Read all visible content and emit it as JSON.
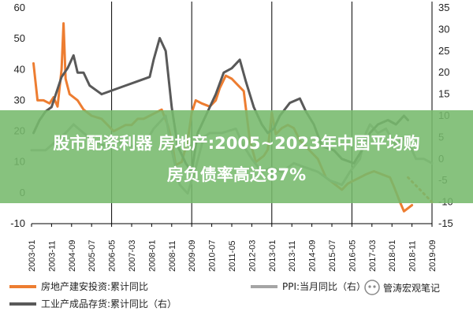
{
  "colors": {
    "real_estate_investment": "#ED7D31",
    "ppi": "#A5A5A5",
    "industrial_inventory": "#595959",
    "banner": "#76BA6C"
  },
  "banner": {
    "line1": "股市配资利器 房地产:2005~2023年中国平均购",
    "line2": "房负债率高达87%"
  },
  "watermark": {
    "icon": "wechat-icon",
    "text": "管涛宏观笔记"
  },
  "chart_data": {
    "type": "line",
    "title": "",
    "left_axis": {
      "min": -10,
      "max": 60,
      "ticks": [
        "60",
        "50",
        "40",
        "30",
        "20",
        "10",
        "0",
        "-10"
      ]
    },
    "right_axis": {
      "min": -15,
      "max": 35,
      "ticks": [
        "35",
        "30",
        "25",
        "20",
        "15",
        "10",
        "5",
        "0",
        "-5",
        "-10",
        "-15"
      ]
    },
    "x_ticks": [
      "2003-01",
      "2003-11",
      "2004-09",
      "2005-07",
      "2006-05",
      "2007-03",
      "2008-01",
      "2008-11",
      "2009-09",
      "2010-07",
      "2011-05",
      "2012-03",
      "2013-01",
      "2013-11",
      "2014-09",
      "2015-07",
      "2016-05",
      "2017-03",
      "2018-01",
      "2018-11",
      "2019-09"
    ],
    "vertical_lines": [
      "2006-05",
      "2009-09",
      "2013-01",
      "2016-05",
      "2019-09"
    ],
    "grid": false,
    "legend_position": "bottom",
    "legend": [
      "房地产建安投资:累计同比",
      "PPI:当月同比（右）",
      "工业产成品存货:累计同比（右）"
    ],
    "series": [
      {
        "name": "房地产建安投资:累计同比",
        "axis": "left",
        "style": "solid",
        "points": [
          [
            "2003-02",
            42
          ],
          [
            "2003-04",
            30
          ],
          [
            "2003-07",
            30
          ],
          [
            "2003-10",
            29
          ],
          [
            "2003-12",
            31
          ],
          [
            "2004-02",
            28
          ],
          [
            "2004-04",
            40
          ],
          [
            "2004-05",
            55
          ],
          [
            "2004-06",
            37
          ],
          [
            "2004-08",
            32
          ],
          [
            "2004-12",
            30
          ],
          [
            "2005-03",
            27
          ],
          [
            "2005-07",
            25
          ],
          [
            "2005-12",
            24
          ],
          [
            "2006-03",
            22
          ],
          [
            "2006-06",
            20
          ],
          [
            "2006-09",
            21
          ],
          [
            "2006-12",
            22
          ],
          [
            "2007-03",
            22
          ],
          [
            "2007-06",
            24
          ],
          [
            "2007-09",
            24
          ],
          [
            "2007-12",
            25
          ],
          [
            "2008-03",
            26
          ],
          [
            "2008-06",
            27
          ],
          [
            "2008-09",
            22
          ],
          [
            "2008-11",
            17
          ],
          [
            "2009-01",
            9
          ],
          [
            "2009-04",
            10
          ],
          [
            "2009-07",
            17
          ],
          [
            "2009-09",
            26
          ],
          [
            "2009-11",
            30
          ],
          [
            "2010-02",
            29
          ],
          [
            "2010-06",
            28
          ],
          [
            "2010-09",
            30
          ],
          [
            "2010-11",
            34
          ],
          [
            "2011-02",
            38
          ],
          [
            "2011-05",
            37
          ],
          [
            "2011-08",
            35
          ],
          [
            "2011-11",
            33
          ],
          [
            "2012-02",
            17
          ],
          [
            "2012-05",
            10
          ],
          [
            "2012-09",
            12
          ],
          [
            "2012-11",
            14
          ],
          [
            "2013-01",
            26
          ],
          [
            "2013-03",
            19
          ],
          [
            "2013-06",
            21
          ],
          [
            "2013-09",
            22
          ],
          [
            "2013-12",
            21
          ],
          [
            "2014-03",
            17
          ],
          [
            "2014-09",
            13
          ],
          [
            "2014-12",
            11
          ],
          [
            "2015-04",
            5
          ],
          [
            "2015-08",
            3
          ],
          [
            "2015-12",
            1
          ],
          [
            "2016-03",
            3
          ],
          [
            "2016-06",
            4
          ],
          [
            "2016-09",
            5
          ],
          [
            "2016-12",
            6
          ],
          [
            "2017-04",
            7
          ],
          [
            "2017-08",
            6
          ],
          [
            "2017-12",
            5
          ],
          [
            "2018-02",
            2
          ],
          [
            "2018-05",
            -3
          ],
          [
            "2018-07",
            -6
          ],
          [
            "2018-09",
            -5
          ],
          [
            "2018-11",
            -4
          ]
        ]
      },
      {
        "name": "PPI:当月同比（右）",
        "axis": "right",
        "style": "solid",
        "points": [
          [
            "2003-01",
            2
          ],
          [
            "2003-08",
            2
          ],
          [
            "2004-01",
            4
          ],
          [
            "2004-06",
            6
          ],
          [
            "2004-10",
            8
          ],
          [
            "2005-03",
            6
          ],
          [
            "2005-09",
            4
          ],
          [
            "2006-02",
            3
          ],
          [
            "2006-08",
            4
          ],
          [
            "2007-03",
            3
          ],
          [
            "2007-09",
            3
          ],
          [
            "2008-02",
            7
          ],
          [
            "2008-08",
            10
          ],
          [
            "2008-11",
            2
          ],
          [
            "2009-03",
            -6
          ],
          [
            "2009-07",
            -8
          ],
          [
            "2009-11",
            -2
          ],
          [
            "2010-03",
            5
          ],
          [
            "2010-06",
            6
          ],
          [
            "2010-12",
            6
          ],
          [
            "2011-07",
            7
          ],
          [
            "2011-11",
            3
          ],
          [
            "2012-03",
            0
          ],
          [
            "2012-08",
            -3
          ],
          [
            "2013-01",
            -2
          ],
          [
            "2013-06",
            -3
          ],
          [
            "2013-12",
            -1
          ],
          [
            "2014-06",
            -2
          ],
          [
            "2014-12",
            -3
          ],
          [
            "2015-06",
            -5
          ],
          [
            "2015-12",
            -6
          ],
          [
            "2016-04",
            -3
          ],
          [
            "2016-09",
            0
          ],
          [
            "2016-12",
            6
          ],
          [
            "2017-02",
            8
          ],
          [
            "2017-06",
            6
          ],
          [
            "2017-10",
            7
          ],
          [
            "2018-03",
            3
          ],
          [
            "2018-06",
            5
          ],
          [
            "2018-10",
            3
          ],
          [
            "2019-01",
            0
          ],
          [
            "2019-05",
            0
          ],
          [
            "2019-09",
            -1
          ]
        ]
      },
      {
        "name": "工业产成品存货:累计同比（右）",
        "axis": "right",
        "style": "solid",
        "points": [
          [
            "2003-02",
            6
          ],
          [
            "2003-05",
            9
          ],
          [
            "2003-08",
            11
          ],
          [
            "2003-11",
            12
          ],
          [
            "2004-04",
            19
          ],
          [
            "2004-07",
            21
          ],
          [
            "2004-10",
            24
          ],
          [
            "2004-12",
            20
          ],
          [
            "2005-03",
            20
          ],
          [
            "2005-06",
            17
          ],
          [
            "2005-12",
            15
          ],
          [
            "2006-06",
            16
          ],
          [
            "2006-12",
            17
          ],
          [
            "2007-06",
            18
          ],
          [
            "2007-12",
            19
          ],
          [
            "2008-02",
            23
          ],
          [
            "2008-05",
            28
          ],
          [
            "2008-08",
            25
          ],
          [
            "2008-11",
            12
          ],
          [
            "2009-02",
            3
          ],
          [
            "2009-06",
            -1
          ],
          [
            "2009-09",
            -3
          ],
          [
            "2009-12",
            6
          ],
          [
            "2010-04",
            10
          ],
          [
            "2010-09",
            15
          ],
          [
            "2011-01",
            20
          ],
          [
            "2011-05",
            21
          ],
          [
            "2011-09",
            23
          ],
          [
            "2011-12",
            18
          ],
          [
            "2012-04",
            12
          ],
          [
            "2012-08",
            8
          ],
          [
            "2012-11",
            6
          ],
          [
            "2013-02",
            7
          ],
          [
            "2013-05",
            10
          ],
          [
            "2013-10",
            13
          ],
          [
            "2014-03",
            14
          ],
          [
            "2014-06",
            11
          ],
          [
            "2014-10",
            8
          ],
          [
            "2015-02",
            3
          ],
          [
            "2015-08",
            2
          ],
          [
            "2015-12",
            0
          ],
          [
            "2016-06",
            -1
          ],
          [
            "2016-10",
            2
          ],
          [
            "2017-02",
            6
          ],
          [
            "2017-06",
            8
          ],
          [
            "2017-11",
            9
          ],
          [
            "2018-03",
            8
          ],
          [
            "2018-07",
            10
          ],
          [
            "2018-09",
            9
          ]
        ]
      },
      {
        "name": "房地产建安投资:累计同比 (延伸)",
        "axis": "left",
        "style": "dotted",
        "points": [
          [
            "2018-09",
            5
          ],
          [
            "2018-12",
            3
          ],
          [
            "2019-03",
            1
          ],
          [
            "2019-06",
            -1
          ],
          [
            "2019-09",
            -3
          ]
        ]
      }
    ]
  }
}
